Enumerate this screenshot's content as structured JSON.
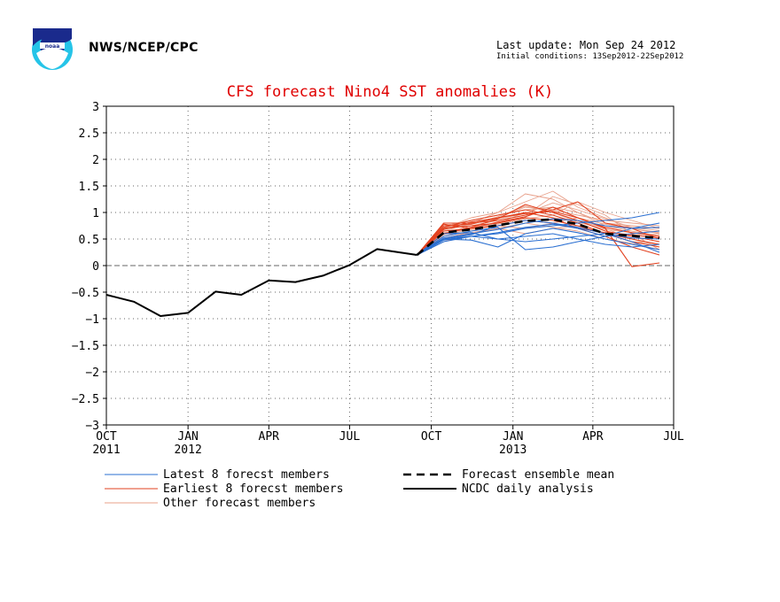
{
  "header": {
    "agency": "NWS/NCEP/CPC",
    "last_update": "Last update: Mon Sep 24 2012",
    "initial_conditions": "Initial conditions: 13Sep2012-22Sep2012",
    "logo": "noaa-logo-icon"
  },
  "colors": {
    "title": "#e00000",
    "latest": "#2a6fd1",
    "earliest": "#e2411f",
    "other": "#e8a08a",
    "mean": "#000000",
    "analysis": "#000000"
  },
  "chart_data": {
    "type": "line",
    "title": "CFS forecast Nino4 SST anomalies (K)",
    "xlabel": "",
    "ylabel": "",
    "ylim": [
      -3,
      3
    ],
    "yticks": [
      -3,
      -2.5,
      -2,
      -1.5,
      -1,
      -0.5,
      0,
      0.5,
      1,
      1.5,
      2,
      2.5,
      3
    ],
    "ytick_labels": [
      "−3",
      "−2.5",
      "−2",
      "−1.5",
      "−1",
      "−0.5",
      "0",
      "0.5",
      "1",
      "1.5",
      "2",
      "2.5",
      "3"
    ],
    "x_axis": {
      "start": "2011-10-01",
      "end": "2013-07-01",
      "unit": "month"
    },
    "xticks": [
      {
        "date": "2011-10-01",
        "label": "OCT",
        "year": "2011"
      },
      {
        "date": "2012-01-01",
        "label": "JAN",
        "year": "2012"
      },
      {
        "date": "2012-04-01",
        "label": "APR",
        "year": ""
      },
      {
        "date": "2012-07-01",
        "label": "JUL",
        "year": ""
      },
      {
        "date": "2012-10-01",
        "label": "OCT",
        "year": ""
      },
      {
        "date": "2013-01-01",
        "label": "JAN",
        "year": "2013"
      },
      {
        "date": "2013-04-01",
        "label": "APR",
        "year": ""
      },
      {
        "date": "2013-07-01",
        "label": "JUL",
        "year": ""
      }
    ],
    "grid": true,
    "legend_position": "below",
    "forecast_months": [
      "2012-09-15",
      "2012-10-15",
      "2012-11-15",
      "2012-12-15",
      "2013-01-15",
      "2013-02-15",
      "2013-03-15",
      "2013-04-15",
      "2013-05-15",
      "2013-06-15"
    ],
    "analysis": {
      "name": "NCDC daily analysis",
      "x": [
        "2011-10-01",
        "2011-11-01",
        "2011-12-01",
        "2012-01-01",
        "2012-02-01",
        "2012-03-01",
        "2012-04-01",
        "2012-05-01",
        "2012-06-01",
        "2012-07-01",
        "2012-08-01",
        "2012-09-15"
      ],
      "y": [
        -0.55,
        -0.68,
        -0.95,
        -0.89,
        -0.49,
        -0.55,
        -0.28,
        -0.31,
        -0.19,
        0.01,
        0.31,
        0.2
      ]
    },
    "ensemble_mean": {
      "name": "Forecast ensemble mean",
      "y": [
        0.2,
        0.62,
        0.68,
        0.76,
        0.84,
        0.87,
        0.78,
        0.6,
        0.56,
        0.52
      ]
    },
    "latest_members": {
      "name": "Latest 8 forecst members",
      "series": [
        [
          0.2,
          0.45,
          0.55,
          0.6,
          0.7,
          0.75,
          0.8,
          0.85,
          0.9,
          1.0
        ],
        [
          0.2,
          0.5,
          0.48,
          0.35,
          0.6,
          0.7,
          0.62,
          0.5,
          0.4,
          0.3
        ],
        [
          0.2,
          0.55,
          0.65,
          0.72,
          0.3,
          0.35,
          0.45,
          0.55,
          0.7,
          0.8
        ],
        [
          0.2,
          0.6,
          0.62,
          0.5,
          0.55,
          0.6,
          0.5,
          0.4,
          0.35,
          0.4
        ],
        [
          0.2,
          0.5,
          0.58,
          0.75,
          0.85,
          0.8,
          0.72,
          0.6,
          0.45,
          0.25
        ],
        [
          0.2,
          0.48,
          0.55,
          0.62,
          0.72,
          0.78,
          0.7,
          0.55,
          0.6,
          0.65
        ],
        [
          0.2,
          0.52,
          0.6,
          0.68,
          0.8,
          0.88,
          0.85,
          0.75,
          0.7,
          0.72
        ],
        [
          0.2,
          0.5,
          0.55,
          0.5,
          0.45,
          0.5,
          0.55,
          0.6,
          0.52,
          0.5
        ]
      ]
    },
    "earliest_members": {
      "name": "Earliest 8 forecst members",
      "series": [
        [
          0.2,
          0.8,
          0.8,
          0.85,
          0.95,
          1.05,
          1.2,
          0.8,
          0.7,
          0.5
        ],
        [
          0.2,
          0.75,
          0.78,
          0.9,
          1.0,
          0.9,
          0.7,
          0.55,
          0.35,
          0.2
        ],
        [
          0.2,
          0.65,
          0.7,
          0.82,
          0.92,
          1.1,
          0.9,
          0.7,
          -0.02,
          0.05
        ],
        [
          0.2,
          0.72,
          0.85,
          0.95,
          1.05,
          0.95,
          0.8,
          0.6,
          0.45,
          0.35
        ],
        [
          0.2,
          0.6,
          0.72,
          0.88,
          1.15,
          1.0,
          0.85,
          0.65,
          0.55,
          0.45
        ],
        [
          0.2,
          0.7,
          0.75,
          0.8,
          0.9,
          0.85,
          0.75,
          0.6,
          0.5,
          0.4
        ],
        [
          0.2,
          0.68,
          0.82,
          0.9,
          0.98,
          1.02,
          0.9,
          0.72,
          0.62,
          0.55
        ],
        [
          0.2,
          0.78,
          0.7,
          0.75,
          0.85,
          0.8,
          0.7,
          0.62,
          0.58,
          0.52
        ]
      ]
    },
    "other_members": {
      "name": "Other forecast members",
      "series": [
        [
          0.2,
          0.7,
          0.9,
          1.0,
          1.2,
          1.4,
          1.1,
          0.9,
          0.7,
          0.6
        ],
        [
          0.2,
          0.65,
          0.8,
          1.0,
          1.35,
          1.25,
          1.0,
          0.8,
          0.75,
          0.7
        ],
        [
          0.2,
          0.55,
          0.7,
          0.9,
          1.1,
          1.05,
          0.95,
          0.85,
          0.8,
          0.75
        ],
        [
          0.2,
          0.6,
          0.75,
          0.85,
          0.95,
          1.3,
          1.15,
          0.95,
          0.6,
          0.3
        ],
        [
          0.2,
          0.5,
          0.65,
          0.8,
          1.0,
          0.9,
          0.85,
          0.7,
          0.5,
          0.35
        ],
        [
          0.2,
          0.75,
          0.85,
          0.95,
          1.05,
          1.1,
          1.0,
          0.75,
          0.65,
          0.55
        ],
        [
          0.2,
          0.45,
          0.6,
          0.7,
          0.6,
          0.7,
          0.75,
          0.6,
          0.45,
          0.4
        ],
        [
          0.2,
          0.58,
          0.72,
          0.78,
          0.88,
          0.95,
          1.2,
          1.0,
          0.85,
          0.7
        ],
        [
          0.2,
          0.52,
          0.62,
          0.7,
          0.8,
          0.72,
          0.65,
          0.5,
          0.42,
          0.3
        ],
        [
          0.2,
          0.68,
          0.78,
          0.92,
          1.12,
          1.0,
          0.82,
          0.68,
          0.62,
          0.58
        ],
        [
          0.2,
          0.62,
          0.68,
          0.75,
          0.7,
          0.8,
          0.9,
          0.78,
          0.7,
          0.62
        ],
        [
          0.2,
          0.7,
          0.82,
          0.88,
          0.98,
          1.18,
          1.05,
          0.88,
          0.72,
          0.66
        ]
      ]
    },
    "legend": [
      {
        "label": "Latest 8 forecst members",
        "key": "latest",
        "style": "thin"
      },
      {
        "label": "Earliest 8 forecst members",
        "key": "earliest",
        "style": "thin"
      },
      {
        "label": "Other forecast members",
        "key": "other",
        "style": "thin"
      },
      {
        "label": "Forecast ensemble mean",
        "key": "mean",
        "style": "dashed"
      },
      {
        "label": "NCDC daily analysis",
        "key": "analysis",
        "style": "solid"
      }
    ]
  }
}
